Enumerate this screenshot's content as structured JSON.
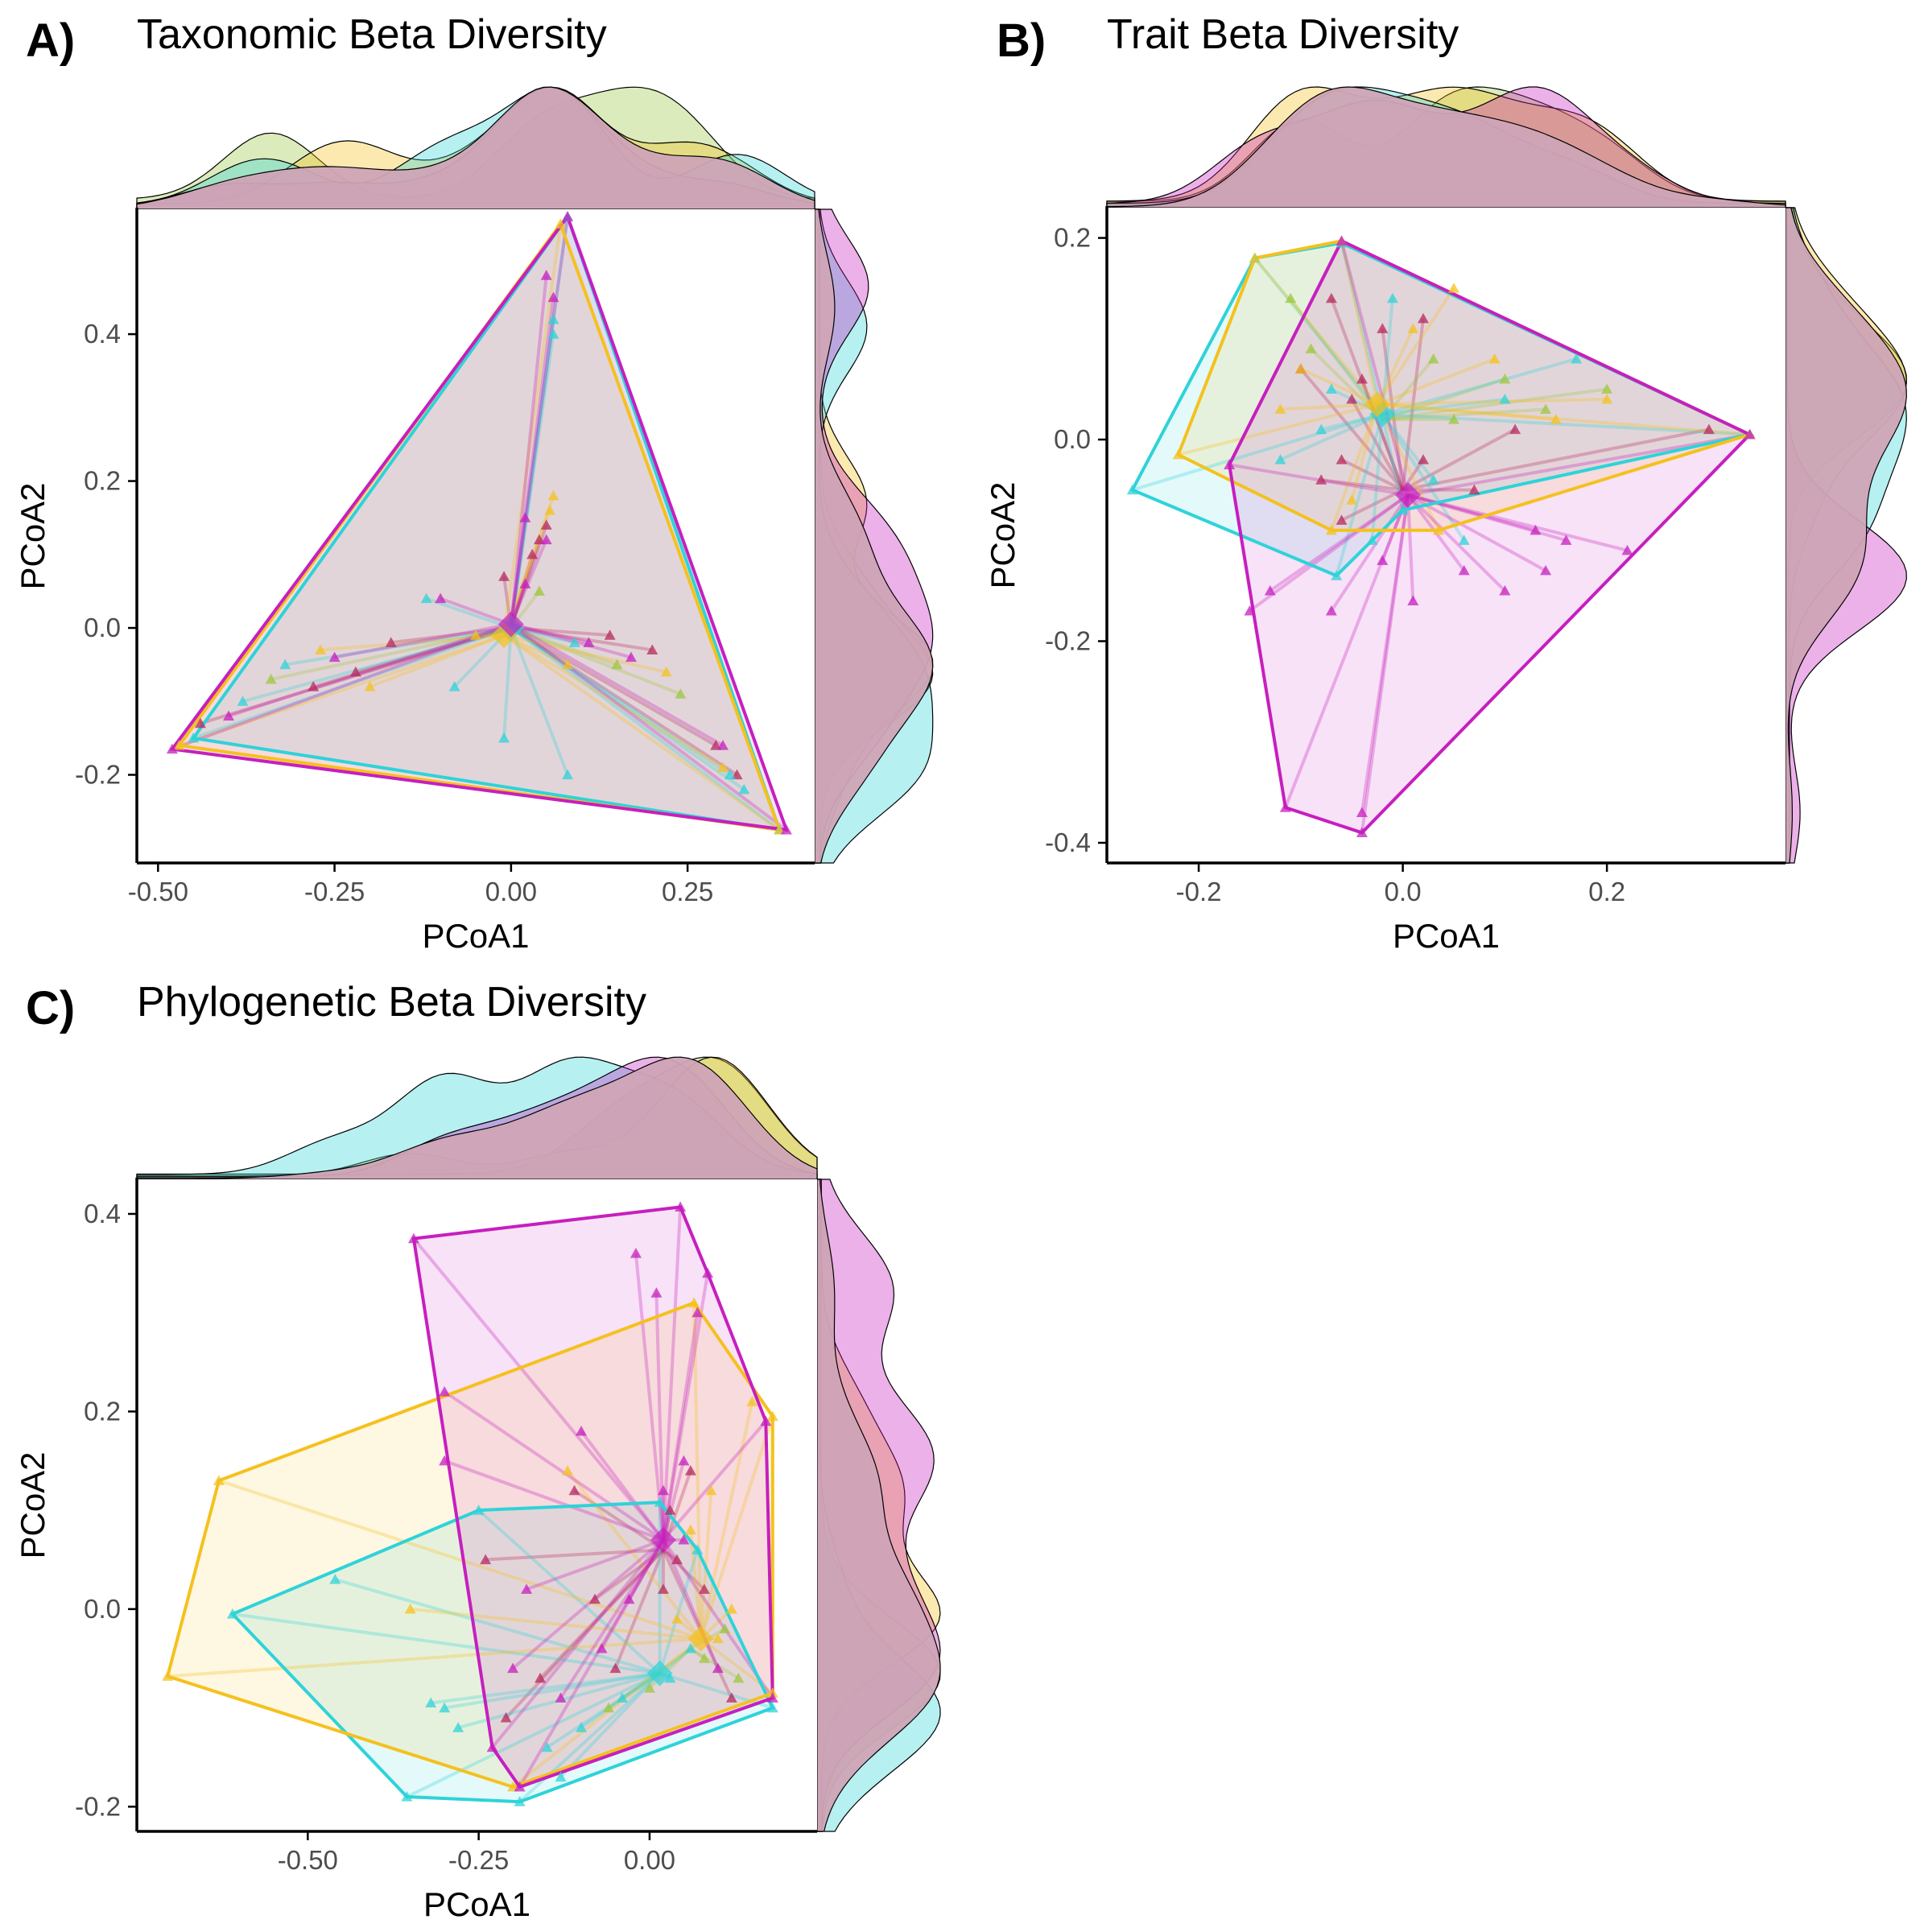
{
  "colors": {
    "cyan": "#2ed3d8",
    "yellow": "#f4c11e",
    "magenta": "#c61fbe",
    "green": "#9cc73c",
    "crimson": "#b5285e",
    "marginal_fill": "#cfa4b6"
  },
  "chart_data": [
    {
      "panel": "A)",
      "title": "Taxonomic Beta Diversity",
      "type": "scatter",
      "xlabel": "PCoA1",
      "ylabel": "PCoA2",
      "xlim": [
        -0.53,
        0.43
      ],
      "ylim": [
        -0.32,
        0.57
      ],
      "xticks": [
        -0.5,
        -0.25,
        0.0,
        0.25
      ],
      "xtick_labels": [
        "-0.50",
        "-0.25",
        "0.00",
        "0.25"
      ],
      "yticks": [
        -0.2,
        0.0,
        0.2,
        0.4
      ],
      "ytick_labels": [
        "-0.2",
        "0.0",
        "0.2",
        "0.4"
      ],
      "grid": false,
      "legend": "none",
      "marginal_densities": "top and right",
      "groups": [
        {
          "color": "cyan",
          "centroid": [
            0.0,
            0.0
          ],
          "hull": [
            [
              0.08,
              0.56
            ],
            [
              0.38,
              -0.275
            ],
            [
              -0.45,
              -0.15
            ]
          ],
          "points": [
            [
              0.06,
              0.42
            ],
            [
              0.06,
              0.4
            ],
            [
              -0.12,
              0.04
            ],
            [
              -0.08,
              -0.08
            ],
            [
              0.09,
              -0.02
            ],
            [
              -0.01,
              -0.15
            ],
            [
              0.08,
              -0.2
            ],
            [
              0.33,
              -0.22
            ],
            [
              0.31,
              -0.2
            ],
            [
              -0.32,
              -0.05
            ],
            [
              -0.38,
              -0.1
            ]
          ]
        },
        {
          "color": "yellow",
          "centroid": [
            -0.01,
            -0.01
          ],
          "hull": [
            [
              0.07,
              0.55
            ],
            [
              0.38,
              -0.275
            ],
            [
              -0.47,
              -0.16
            ]
          ],
          "points": [
            [
              0.06,
              0.18
            ],
            [
              0.055,
              0.16
            ],
            [
              -0.05,
              -0.01
            ],
            [
              0.08,
              -0.05
            ],
            [
              0.22,
              -0.06
            ],
            [
              -0.27,
              -0.03
            ],
            [
              0.3,
              -0.19
            ],
            [
              -0.2,
              -0.08
            ]
          ]
        },
        {
          "color": "magenta",
          "centroid": [
            0.0,
            0.005
          ],
          "hull": [
            [
              0.08,
              0.56
            ],
            [
              0.39,
              -0.275
            ],
            [
              -0.48,
              -0.165
            ]
          ],
          "points": [
            [
              0.06,
              0.45
            ],
            [
              0.05,
              0.48
            ],
            [
              -0.1,
              0.04
            ],
            [
              0.11,
              -0.02
            ],
            [
              0.3,
              -0.16
            ],
            [
              -0.4,
              -0.12
            ],
            [
              0.02,
              0.15
            ],
            [
              0.05,
              0.12
            ],
            [
              -0.25,
              -0.04
            ],
            [
              0.17,
              -0.04
            ],
            [
              0.02,
              0.06
            ]
          ]
        },
        {
          "color": "green",
          "centroid": [
            0.0,
            0.0
          ],
          "hull": [],
          "points": [
            [
              0.24,
              -0.09
            ],
            [
              -0.34,
              -0.07
            ],
            [
              0.15,
              -0.05
            ],
            [
              0.04,
              0.05
            ]
          ]
        },
        {
          "color": "crimson",
          "centroid": [
            0.0,
            0.0
          ],
          "hull": [],
          "points": [
            [
              0.05,
              0.14
            ],
            [
              0.04,
              0.12
            ],
            [
              0.03,
              0.1
            ],
            [
              -0.01,
              0.07
            ],
            [
              -0.22,
              -0.06
            ],
            [
              -0.44,
              -0.13
            ],
            [
              0.32,
              -0.2
            ],
            [
              0.2,
              -0.03
            ],
            [
              0.29,
              -0.16
            ],
            [
              -0.28,
              -0.08
            ],
            [
              -0.17,
              -0.02
            ],
            [
              0.14,
              -0.01
            ]
          ]
        }
      ]
    },
    {
      "panel": "B)",
      "title": "Trait Beta Diversity",
      "type": "scatter",
      "xlabel": "PCoA1",
      "ylabel": "PCoA2",
      "xlim": [
        -0.29,
        0.375
      ],
      "ylim": [
        -0.42,
        0.23
      ],
      "xticks": [
        -0.2,
        0.0,
        0.2
      ],
      "xtick_labels": [
        "-0.2",
        "0.0",
        "0.2"
      ],
      "yticks": [
        -0.4,
        -0.2,
        0.0,
        0.2
      ],
      "ytick_labels": [
        "-0.4",
        "-0.2",
        "0.0",
        "0.2"
      ],
      "grid": false,
      "legend": "none",
      "marginal_densities": "top and right",
      "groups": [
        {
          "color": "cyan",
          "centroid": [
            -0.02,
            0.025
          ],
          "hull": [
            [
              -0.265,
              -0.05
            ],
            [
              -0.145,
              0.18
            ],
            [
              -0.06,
              0.195
            ],
            [
              0.34,
              0.005
            ],
            [
              0.0,
              -0.07
            ],
            [
              -0.065,
              -0.135
            ]
          ],
          "points": [
            [
              -0.01,
              0.14
            ],
            [
              0.17,
              0.08
            ],
            [
              0.1,
              0.04
            ],
            [
              -0.12,
              -0.02
            ],
            [
              -0.08,
              0.01
            ],
            [
              0.03,
              -0.04
            ],
            [
              -0.03,
              -0.1
            ],
            [
              0.06,
              -0.1
            ],
            [
              -0.07,
              0.05
            ]
          ]
        },
        {
          "color": "yellow",
          "centroid": [
            -0.025,
            0.035
          ],
          "hull": [
            [
              -0.22,
              -0.015
            ],
            [
              -0.145,
              0.18
            ],
            [
              -0.06,
              0.197
            ],
            [
              0.34,
              0.005
            ],
            [
              0.035,
              -0.09
            ],
            [
              -0.07,
              -0.09
            ]
          ],
          "points": [
            [
              0.09,
              0.08
            ],
            [
              0.05,
              0.15
            ],
            [
              -0.1,
              0.07
            ],
            [
              0.2,
              0.04
            ],
            [
              -0.05,
              -0.06
            ],
            [
              0.01,
              0.11
            ],
            [
              -0.12,
              0.03
            ],
            [
              0.15,
              0.02
            ]
          ]
        },
        {
          "color": "magenta",
          "centroid": [
            0.005,
            -0.055
          ],
          "hull": [
            [
              -0.17,
              -0.025
            ],
            [
              -0.06,
              0.197
            ],
            [
              0.34,
              0.005
            ],
            [
              -0.04,
              -0.39
            ],
            [
              -0.115,
              -0.365
            ]
          ],
          "points": [
            [
              -0.13,
              -0.15
            ],
            [
              -0.15,
              -0.17
            ],
            [
              -0.07,
              -0.17
            ],
            [
              0.01,
              -0.16
            ],
            [
              0.1,
              -0.15
            ],
            [
              0.13,
              -0.09
            ],
            [
              0.22,
              -0.11
            ],
            [
              -0.04,
              -0.37
            ],
            [
              0.14,
              -0.13
            ],
            [
              0.06,
              -0.13
            ],
            [
              -0.02,
              -0.12
            ],
            [
              0.16,
              -0.1
            ]
          ]
        },
        {
          "color": "green",
          "centroid": [
            -0.02,
            0.02
          ],
          "hull": [],
          "points": [
            [
              -0.11,
              0.14
            ],
            [
              0.2,
              0.05
            ],
            [
              0.14,
              0.03
            ],
            [
              0.05,
              0.02
            ],
            [
              -0.09,
              0.09
            ],
            [
              0.03,
              0.08
            ],
            [
              0.1,
              0.06
            ]
          ]
        },
        {
          "color": "crimson",
          "centroid": [
            0.0,
            -0.05
          ],
          "hull": [],
          "points": [
            [
              -0.07,
              0.14
            ],
            [
              -0.02,
              0.11
            ],
            [
              0.02,
              0.12
            ],
            [
              -0.1,
              0.07
            ],
            [
              -0.05,
              0.04
            ],
            [
              0.3,
              0.01
            ],
            [
              0.07,
              -0.05
            ],
            [
              -0.08,
              -0.04
            ],
            [
              -0.06,
              -0.02
            ],
            [
              0.02,
              -0.02
            ],
            [
              -0.04,
              0.06
            ],
            [
              0.11,
              0.01
            ],
            [
              -0.06,
              -0.08
            ]
          ]
        }
      ]
    },
    {
      "panel": "C)",
      "title": "Phylogenetic Beta Diversity",
      "type": "scatter",
      "xlabel": "PCoA1",
      "ylabel": "PCoA2",
      "xlim": [
        -0.75,
        0.245
      ],
      "ylim": [
        -0.225,
        0.435
      ],
      "xticks": [
        -0.5,
        -0.25,
        0.0
      ],
      "xtick_labels": [
        "-0.50",
        "-0.25",
        "0.00"
      ],
      "yticks": [
        -0.2,
        0.0,
        0.2,
        0.4
      ],
      "ytick_labels": [
        "-0.2",
        "0.0",
        "0.2",
        "0.4"
      ],
      "grid": false,
      "legend": "none",
      "marginal_densities": "top and right",
      "groups": [
        {
          "color": "cyan",
          "centroid": [
            0.015,
            -0.065
          ],
          "hull": [
            [
              -0.61,
              -0.005
            ],
            [
              -0.25,
              0.1
            ],
            [
              0.015,
              0.108
            ],
            [
              0.07,
              0.06
            ],
            [
              0.18,
              -0.1
            ],
            [
              -0.19,
              -0.195
            ],
            [
              -0.355,
              -0.19
            ]
          ],
          "points": [
            [
              -0.46,
              0.03
            ],
            [
              -0.3,
              -0.1
            ],
            [
              -0.28,
              -0.12
            ],
            [
              -0.15,
              -0.14
            ],
            [
              -0.1,
              -0.12
            ],
            [
              -0.04,
              -0.09
            ],
            [
              0.06,
              -0.04
            ],
            [
              -0.32,
              -0.095
            ],
            [
              -0.13,
              -0.17
            ],
            [
              0.03,
              -0.07
            ]
          ]
        },
        {
          "color": "yellow",
          "centroid": [
            0.075,
            -0.03
          ],
          "hull": [
            [
              -0.705,
              -0.068
            ],
            [
              -0.63,
              0.13
            ],
            [
              0.065,
              0.31
            ],
            [
              0.18,
              0.195
            ],
            [
              0.18,
              -0.085
            ],
            [
              -0.2,
              -0.18
            ]
          ],
          "points": [
            [
              -0.35,
              0.0
            ],
            [
              -0.12,
              0.14
            ],
            [
              0.15,
              0.21
            ],
            [
              0.09,
              0.12
            ],
            [
              0.04,
              -0.01
            ],
            [
              0.12,
              0.0
            ],
            [
              0.1,
              -0.03
            ],
            [
              0.06,
              0.08
            ]
          ]
        },
        {
          "color": "magenta",
          "centroid": [
            0.02,
            0.07
          ],
          "hull": [
            [
              -0.345,
              0.375
            ],
            [
              0.045,
              0.407
            ],
            [
              0.085,
              0.34
            ],
            [
              0.17,
              0.19
            ],
            [
              0.18,
              -0.09
            ],
            [
              -0.19,
              -0.18
            ],
            [
              -0.23,
              -0.14
            ]
          ],
          "points": [
            [
              -0.02,
              0.36
            ],
            [
              0.01,
              0.32
            ],
            [
              0.07,
              0.3
            ],
            [
              -0.1,
              0.18
            ],
            [
              -0.3,
              0.22
            ],
            [
              -0.3,
              0.15
            ],
            [
              0.05,
              0.15
            ],
            [
              -0.18,
              0.02
            ],
            [
              -0.03,
              0.01
            ],
            [
              -0.2,
              -0.06
            ],
            [
              -0.13,
              -0.09
            ],
            [
              0.02,
              0.12
            ],
            [
              0.05,
              0.07
            ],
            [
              0.1,
              -0.06
            ],
            [
              -0.07,
              -0.04
            ]
          ]
        },
        {
          "color": "green",
          "centroid": [
            0.06,
            -0.04
          ],
          "hull": [],
          "points": [
            [
              0.13,
              -0.07
            ],
            [
              0.08,
              -0.05
            ],
            [
              0.11,
              -0.02
            ],
            [
              0.0,
              -0.08
            ],
            [
              -0.06,
              -0.1
            ]
          ]
        },
        {
          "color": "crimson",
          "centroid": [
            0.02,
            0.06
          ],
          "hull": [],
          "points": [
            [
              -0.11,
              0.12
            ],
            [
              0.06,
              0.14
            ],
            [
              0.03,
              0.1
            ],
            [
              -0.08,
              0.01
            ],
            [
              -0.24,
              0.05
            ],
            [
              0.04,
              0.05
            ],
            [
              -0.16,
              -0.07
            ],
            [
              -0.05,
              -0.06
            ],
            [
              0.02,
              0.02
            ],
            [
              0.12,
              -0.09
            ],
            [
              -0.21,
              -0.11
            ],
            [
              0.08,
              0.02
            ]
          ]
        }
      ]
    }
  ]
}
